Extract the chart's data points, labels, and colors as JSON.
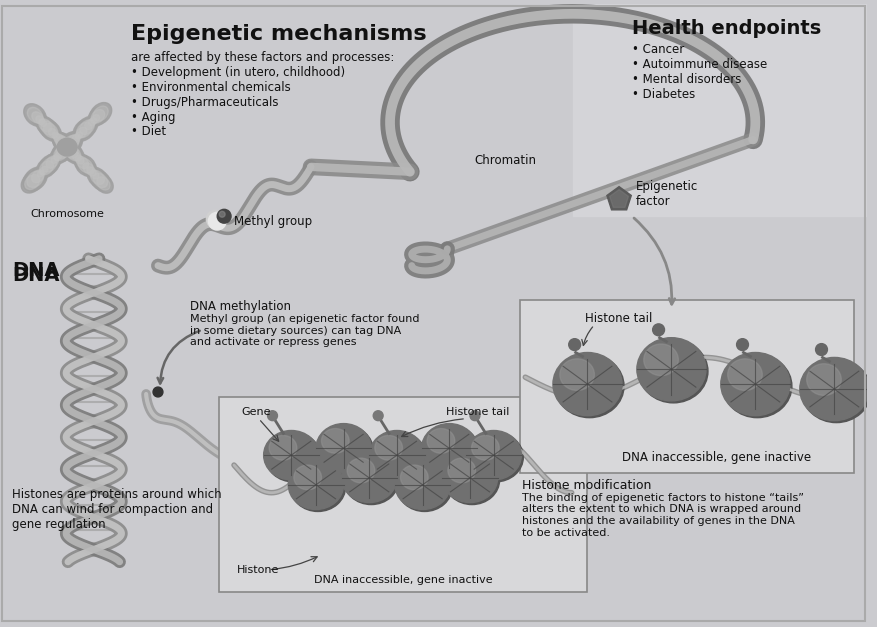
{
  "bg_color": "#cbcbcf",
  "bg_top_right": "#d5d5d8",
  "title_main": "Epigenetic mechanisms",
  "subtitle": "are affected by these factors and processes:",
  "factors": [
    "• Development (in utero, childhood)",
    "• Environmental chemicals",
    "• Drugs/Pharmaceuticals",
    "• Aging",
    "• Diet"
  ],
  "health_title": "Health endpoints",
  "health_items": [
    "• Cancer",
    "• Autoimmune disease",
    "• Mental disorders",
    "• Diabetes"
  ],
  "epigenetic_factor_label": "Epigenetic\nfactor",
  "dna_label": "DNA",
  "chromosome_label": "Chromosome",
  "methyl_group_label": "Methyl group",
  "chromatin_label": "Chromatin",
  "methylation_title": "DNA methylation",
  "methylation_desc": "Methyl group (an epigenetic factor found\nin some dietary sources) can tag DNA\nand activate or repress genes",
  "histones_desc": "Histones are proteins around which\nDNA can wind for compaction and\ngene regulation",
  "inset1_gene": "Gene",
  "inset1_histone_tail": "Histone tail",
  "inset1_histone": "Histone",
  "inset1_inactive": "DNA inaccessible, gene inactive",
  "inset2_histone_tail": "Histone tail",
  "inset2_inactive": "DNA inaccessible, gene inactive",
  "histone_mod_title": "Histone modification",
  "histone_mod_desc": "The binding of epigenetic factors to histone “tails”\nalters the extent to which DNA is wrapped around\nhistones and the availability of genes in the DNA\nto be activated.",
  "text_dark": "#111111",
  "gray_chrom": "#aaaaaa",
  "gray_mid": "#888888",
  "gray_dark": "#666666",
  "gray_strand": "#b0b0b0",
  "box_bg": "#dedede",
  "border_color": "#999999"
}
